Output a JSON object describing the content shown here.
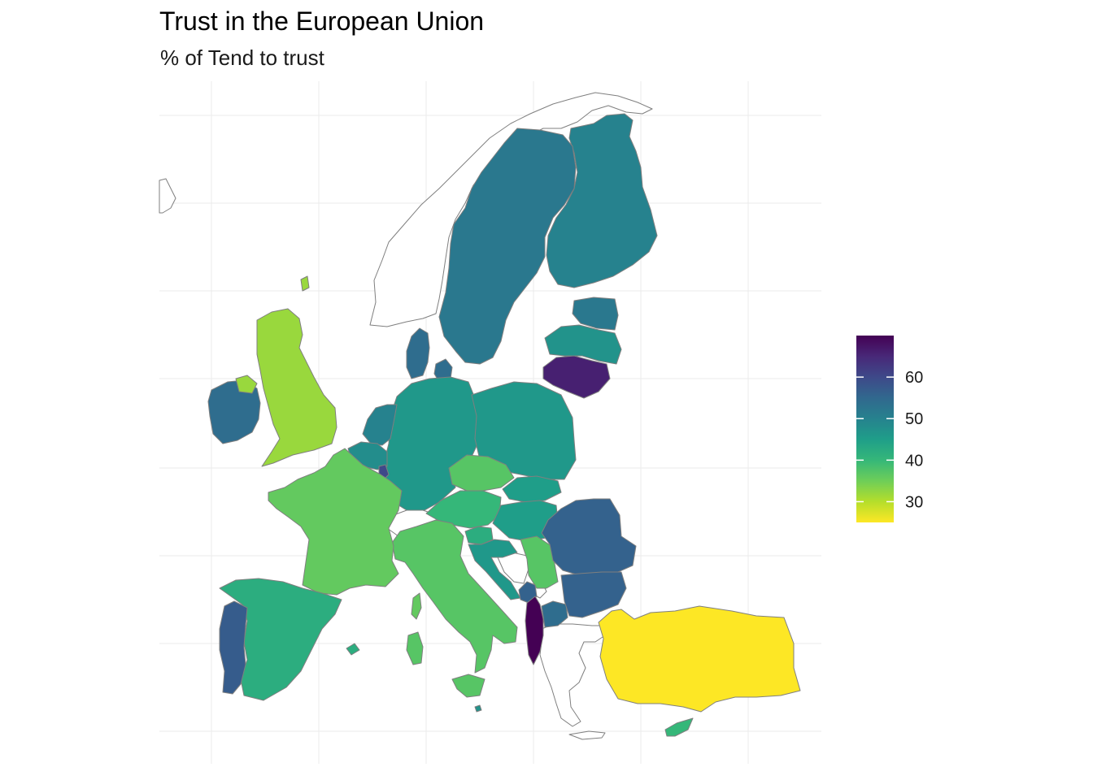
{
  "title": "Trust in the European Union",
  "subtitle": "% of Tend to trust",
  "legend": {
    "ticks": [
      {
        "value": 60,
        "label": "60"
      },
      {
        "value": 50,
        "label": "50"
      },
      {
        "value": 40,
        "label": "40"
      },
      {
        "value": 30,
        "label": "30"
      }
    ],
    "min": 25,
    "max": 70,
    "palette": [
      "#fde725",
      "#b5de2b",
      "#6ece58",
      "#35b779",
      "#1f9e89",
      "#26828e",
      "#31688e",
      "#3e4989",
      "#482878",
      "#440154"
    ]
  },
  "chart_data": {
    "type": "choropleth",
    "title": "Trust in the European Union",
    "subtitle": "% of Tend to trust",
    "scale": "viridis (reversed)",
    "colorbar_range": [
      25,
      70
    ],
    "colorbar_ticks": [
      30,
      40,
      50,
      60
    ],
    "legend_position": "right",
    "grid": true,
    "regions": [
      {
        "name": "Lithuania",
        "value": 66
      },
      {
        "name": "Albania",
        "value": 70
      },
      {
        "name": "Luxembourg",
        "value": 60
      },
      {
        "name": "Romania",
        "value": 56
      },
      {
        "name": "Bulgaria",
        "value": 56
      },
      {
        "name": "Portugal",
        "value": 57
      },
      {
        "name": "Montenegro",
        "value": 56
      },
      {
        "name": "Ireland",
        "value": 54
      },
      {
        "name": "Denmark",
        "value": 54
      },
      {
        "name": "North Macedonia",
        "value": 54
      },
      {
        "name": "Sweden",
        "value": 52
      },
      {
        "name": "Finland",
        "value": 50
      },
      {
        "name": "Estonia",
        "value": 52
      },
      {
        "name": "Netherlands",
        "value": 50
      },
      {
        "name": "Latvia",
        "value": 47
      },
      {
        "name": "Poland",
        "value": 46
      },
      {
        "name": "Germany",
        "value": 46
      },
      {
        "name": "Belgium",
        "value": 48
      },
      {
        "name": "Slovakia",
        "value": 45
      },
      {
        "name": "Hungary",
        "value": 45
      },
      {
        "name": "Croatia",
        "value": 46
      },
      {
        "name": "Malta",
        "value": 47
      },
      {
        "name": "Spain",
        "value": 42
      },
      {
        "name": "Slovenia",
        "value": 42
      },
      {
        "name": "Austria",
        "value": 40
      },
      {
        "name": "Cyprus",
        "value": 40
      },
      {
        "name": "Czechia",
        "value": 37
      },
      {
        "name": "Italy",
        "value": 37
      },
      {
        "name": "Serbia",
        "value": 37
      },
      {
        "name": "France",
        "value": 36
      },
      {
        "name": "United Kingdom",
        "value": 32
      },
      {
        "name": "Turkey",
        "value": 25
      }
    ]
  }
}
